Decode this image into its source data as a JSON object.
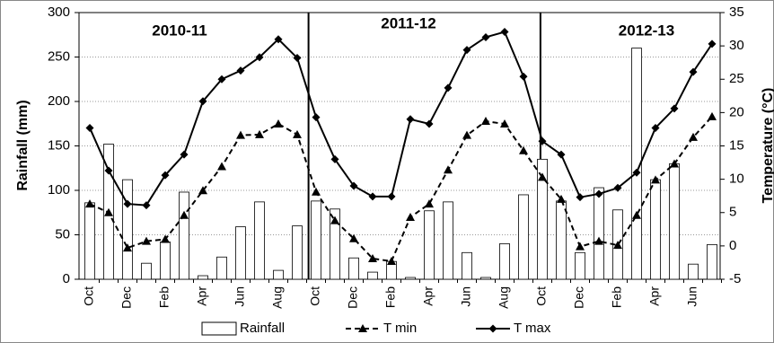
{
  "chart_data": {
    "type": "bar-line",
    "y_label": "Rainfall (mm)",
    "y2_label": "Temperature (°C)",
    "annotations": [
      "2010-11",
      "2011-12",
      "2012-13"
    ],
    "categories": [
      "Oct",
      null,
      "Dec",
      null,
      "Feb",
      null,
      "Apr",
      null,
      "Jun",
      null,
      "Aug",
      null,
      "Oct",
      null,
      "Dec",
      null,
      "Feb",
      null,
      "Apr",
      null,
      "Jun",
      null,
      "Aug",
      null,
      "Oct",
      null,
      "Dec",
      null,
      "Feb",
      null,
      "Apr",
      null,
      "Jun",
      null
    ],
    "series": [
      {
        "name": "Rainfall",
        "color": "#ffffff",
        "values": [
          86,
          152,
          112,
          18,
          42,
          98,
          4,
          25,
          59,
          87,
          10,
          60,
          88,
          79,
          24,
          8,
          20,
          2,
          77,
          87,
          30,
          2,
          40,
          95,
          135,
          88,
          30,
          103,
          78,
          260,
          112,
          130,
          17,
          39
        ]
      },
      {
        "name": "T min",
        "color": "#000000",
        "axis": "y2",
        "values": [
          6.3,
          5,
          -0.3,
          0.7,
          1,
          4.6,
          8.3,
          11.9,
          16.6,
          16.7,
          18.3,
          16.7,
          8.1,
          3.8,
          1.1,
          -1.9,
          -2.3,
          4.3,
          6.3,
          11.4,
          16.6,
          18.7,
          18.3,
          14.3,
          10.3,
          7,
          -0.1,
          0.7,
          0.1,
          4.6,
          9.9,
          12.3,
          16.3,
          19.4
        ]
      },
      {
        "name": "T max",
        "color": "#000000",
        "axis": "y2",
        "values": [
          17.7,
          11.3,
          6.3,
          6.1,
          10.6,
          13.7,
          21.7,
          25,
          26.3,
          28.3,
          31,
          28.2,
          19.3,
          13,
          9,
          7.4,
          7.4,
          19,
          18.3,
          23.7,
          29.4,
          31.3,
          32.1,
          25.4,
          15.7,
          13.7,
          7.3,
          7.8,
          8.7,
          11,
          17.7,
          20.6,
          26.1,
          30.3
        ]
      }
    ],
    "ylim": [
      0,
      300
    ],
    "yticks": [
      0,
      50,
      100,
      150,
      200,
      250,
      300
    ],
    "y2lim": [
      -5,
      35
    ],
    "y2ticks": [
      -5,
      0,
      5,
      10,
      15,
      20,
      25,
      30,
      35
    ],
    "grid": true
  }
}
